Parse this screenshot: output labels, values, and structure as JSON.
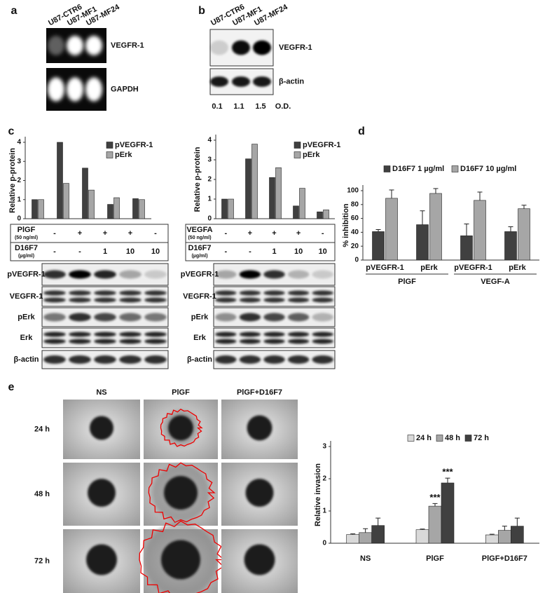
{
  "panel_a": {
    "label": "a",
    "lanes": [
      "U87-CTR6",
      "U87-MF1",
      "U87-MF24"
    ],
    "bands": [
      "VEGFR-1",
      "GAPDH"
    ]
  },
  "panel_b": {
    "label": "b",
    "lanes": [
      "U87-CTR6",
      "U87-MF1",
      "U87-MF24"
    ],
    "bands": [
      "VEGFR-1",
      "β-actin"
    ],
    "od_values": [
      0.1,
      1.1,
      1.5
    ],
    "od_label": "O.D."
  },
  "panel_c": {
    "label": "c",
    "blots": [
      {
        "treatment": {
          "name": "PlGF",
          "dose": "(50 ng/ml)",
          "values": [
            "-",
            "+",
            "+",
            "+",
            "-"
          ]
        },
        "inhibitor": {
          "name": "D16F7",
          "dose": "(µg/ml)",
          "values": [
            "-",
            "-",
            1,
            10,
            10
          ]
        },
        "bands": [
          "pVEGFR-1",
          "VEGFR-1",
          "pErk",
          "Erk",
          "β-actin"
        ]
      },
      {
        "treatment": {
          "name": "VEGFA",
          "dose": "(50 ng/ml)",
          "values": [
            "-",
            "+",
            "+",
            "+",
            "-"
          ]
        },
        "inhibitor": {
          "name": "D16F7",
          "dose": "(µg/ml)",
          "values": [
            "-",
            "-",
            1,
            10,
            10
          ]
        },
        "bands": [
          "pVEGFR-1",
          "VEGFR-1",
          "pErk",
          "Erk",
          "β-actin"
        ]
      }
    ]
  },
  "panel_d": {
    "label": "d"
  },
  "panel_e": {
    "label": "e",
    "columns": [
      "NS",
      "PlGF",
      "PlGF+D16F7"
    ],
    "rows": [
      "24 h",
      "48 h",
      "72 h"
    ]
  },
  "chart_data": [
    {
      "type": "bar",
      "y_label": "Relative p-protein",
      "categories": [
        null,
        null,
        null,
        null,
        null
      ],
      "series": [
        {
          "name": "pVEGFR-1",
          "color": "#404040",
          "values": [
            1,
            4,
            2.65,
            0.75,
            1.05
          ]
        },
        {
          "name": "pErk",
          "color": "#a6a6a6",
          "values": [
            1,
            1.85,
            1.5,
            1.1,
            1.0
          ]
        }
      ],
      "ylim": [
        0,
        4
      ],
      "yticks": [
        0,
        1,
        2,
        3,
        4
      ]
    },
    {
      "type": "bar",
      "y_label": "Relative p-protein",
      "categories": [
        null,
        null,
        null,
        null,
        null
      ],
      "series": [
        {
          "name": "pVEGFR-1",
          "color": "#404040",
          "values": [
            1,
            3.05,
            2.1,
            0.65,
            0.35
          ]
        },
        {
          "name": "pErk",
          "color": "#a6a6a6",
          "values": [
            1,
            3.8,
            2.6,
            1.55,
            0.45
          ]
        }
      ],
      "ylim": [
        0,
        4
      ],
      "yticks": [
        0,
        1,
        2,
        3,
        4
      ]
    },
    {
      "type": "bar",
      "y_label": "% inhibition",
      "categories": [
        "pVEGFR-1",
        "pErk",
        "pVEGFR-1",
        "pErk"
      ],
      "groups": [
        "PlGF",
        "VEGF-A"
      ],
      "series": [
        {
          "name": "D16F7 1 µg/ml",
          "color": "#404040",
          "values": [
            41,
            51,
            35,
            41
          ],
          "errors": [
            3,
            20,
            17,
            7
          ]
        },
        {
          "name": "D16F7 10 µg/ml",
          "color": "#a6a6a6",
          "values": [
            89,
            96,
            86,
            74
          ],
          "errors": [
            12,
            7,
            12,
            5
          ]
        }
      ],
      "ylim": [
        0,
        100
      ],
      "yticks": [
        0,
        20,
        40,
        60,
        80,
        100
      ]
    },
    {
      "type": "bar",
      "y_label": "Relative invasion",
      "categories": [
        "NS",
        "PlGF",
        "PlGF+D16F7"
      ],
      "series": [
        {
          "name": "24 h",
          "color": "#d9d9d9",
          "values": [
            0.27,
            0.42,
            0.26
          ],
          "errors": [
            0.02,
            0.02,
            0.02
          ]
        },
        {
          "name": "48 h",
          "color": "#a6a6a6",
          "values": [
            0.33,
            1.15,
            0.4
          ],
          "errors": [
            0.12,
            0.08,
            0.13
          ],
          "significance": [
            null,
            "***",
            null
          ]
        },
        {
          "name": "72 h",
          "color": "#404040",
          "values": [
            0.55,
            1.87,
            0.53
          ],
          "errors": [
            0.23,
            0.15,
            0.25
          ],
          "significance": [
            null,
            "***",
            null
          ]
        }
      ],
      "ylim": [
        0,
        3
      ],
      "yticks": [
        0,
        1,
        2,
        3
      ]
    }
  ]
}
